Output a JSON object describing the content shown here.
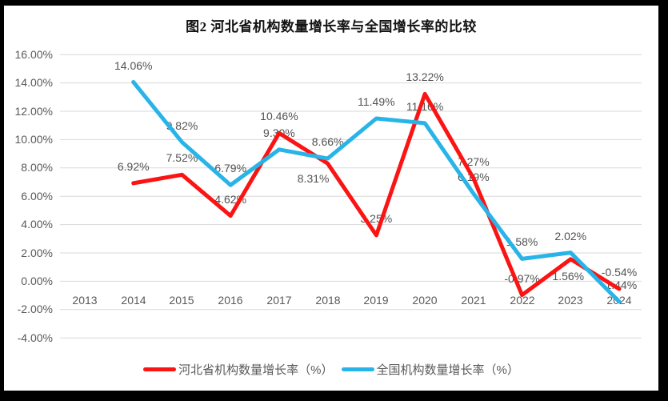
{
  "chart_data": {
    "type": "line",
    "title": "图2 河北省机构数量增长率与全国增长率的比较",
    "categories": [
      "2013",
      "2014",
      "2015",
      "2016",
      "2017",
      "2018",
      "2019",
      "2020",
      "2021",
      "2022",
      "2023",
      "2024"
    ],
    "series": [
      {
        "name": "河北省机构数量增长率（%）",
        "color": "#fa1414",
        "values": [
          null,
          6.92,
          7.52,
          4.62,
          10.46,
          8.31,
          3.25,
          13.22,
          7.27,
          -0.97,
          1.56,
          -0.54
        ],
        "point_labels": [
          null,
          "6.92%",
          "7.52%",
          "4.62%",
          "10.46%",
          "8.31%",
          "3.25%",
          "13.22%",
          "7.27%",
          "-0.97%",
          "1.56%",
          "-0.54%"
        ],
        "label_pos": {
          "5": "below-left",
          "10": "below"
        }
      },
      {
        "name": "全国机构数量增长率（%）",
        "color": "#29b4e8",
        "values": [
          null,
          14.06,
          9.82,
          6.79,
          9.3,
          8.66,
          11.49,
          11.16,
          6.19,
          1.58,
          2.02,
          -1.44
        ],
        "point_labels": [
          null,
          "14.06%",
          "9.82%",
          "6.79%",
          "9.30%",
          "8.66%",
          "11.49%",
          "11.16%",
          "6.19%",
          "1.58%",
          "2.02%",
          "-1.44%"
        ],
        "label_pos": {}
      }
    ],
    "xlabel": "",
    "ylabel": "",
    "ylim": [
      -4,
      16
    ],
    "y_tick_step": 2,
    "y_tick_labels": [
      "16.00%",
      "14.00%",
      "12.00%",
      "10.00%",
      "8.00%",
      "6.00%",
      "4.00%",
      "2.00%",
      "0.00%",
      "-2.00%",
      "-4.00%"
    ],
    "grid": true,
    "legend_position": "bottom",
    "gridline_color": "#d9d9d9",
    "tick_color": "#595959"
  }
}
